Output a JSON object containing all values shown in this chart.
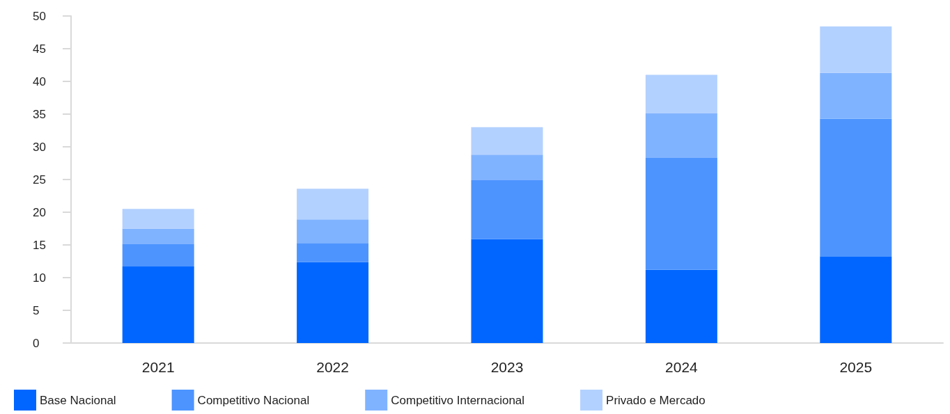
{
  "chart_data": {
    "type": "bar",
    "stacked": true,
    "categories": [
      "2021",
      "2022",
      "2023",
      "2024",
      "2025"
    ],
    "series": [
      {
        "name": "Base Nacional",
        "color": "#0066ff",
        "values": [
          11.7,
          12.4,
          15.9,
          11.2,
          13.2
        ]
      },
      {
        "name": "Competitivo Nacional",
        "color": "#4d94ff",
        "values": [
          3.4,
          2.9,
          9.0,
          17.1,
          21.1
        ]
      },
      {
        "name": "Competitivo Internacional",
        "color": "#80b3ff",
        "values": [
          2.4,
          3.6,
          3.9,
          6.8,
          7.0
        ]
      },
      {
        "name": "Privado e Mercado",
        "color": "#b3d1ff",
        "values": [
          3.0,
          4.7,
          4.2,
          5.9,
          7.1
        ]
      }
    ],
    "ylim": [
      0,
      50
    ],
    "yticks": [
      0,
      5,
      10,
      15,
      20,
      25,
      30,
      35,
      40,
      45,
      50
    ],
    "grid": false,
    "legend": "bottom"
  }
}
